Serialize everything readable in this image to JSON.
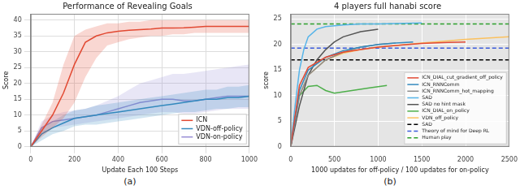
{
  "chart_data": [
    {
      "type": "line",
      "title": "Performance of Revealing Goals",
      "caption": "(a)",
      "x_label": "Update Each 100 Steps",
      "y_label": "Score",
      "xlim": [
        0,
        1000
      ],
      "xticks": [
        0,
        200,
        400,
        600,
        800,
        1000
      ],
      "ylim": [
        0,
        42
      ],
      "yticks": [
        0,
        5,
        10,
        15,
        20,
        25,
        30,
        35,
        40
      ],
      "grid": true,
      "legend": "lower right",
      "x": [
        0,
        50,
        100,
        150,
        200,
        250,
        300,
        350,
        400,
        450,
        500,
        550,
        600,
        650,
        700,
        750,
        800,
        850,
        900,
        950,
        1000
      ],
      "series": [
        {
          "name": "ICN",
          "color": "#e24a33",
          "values": [
            0,
            5,
            10,
            17,
            26,
            33,
            35,
            36,
            36.5,
            36.8,
            37,
            37.2,
            37.5,
            37.5,
            37.6,
            37.8,
            38,
            38,
            38,
            38,
            38
          ],
          "lower": [
            0,
            3,
            6,
            9,
            14,
            22,
            28,
            32,
            33,
            34,
            34.5,
            35,
            35,
            35.5,
            35.5,
            36,
            36,
            36,
            36,
            36,
            36
          ],
          "upper": [
            0,
            7,
            14,
            26,
            35,
            37,
            38,
            39,
            39,
            39.5,
            39.5,
            40,
            40,
            40,
            40,
            40,
            40,
            40,
            40,
            40,
            40
          ]
        },
        {
          "name": "VDN-off-policy",
          "color": "#348abd",
          "values": [
            0,
            4,
            6,
            7.5,
            9,
            9.5,
            10,
            10.5,
            11,
            11.5,
            12,
            12.5,
            13,
            13.5,
            14,
            14.5,
            15,
            15,
            15.5,
            15.5,
            16
          ],
          "lower": [
            0,
            2,
            4,
            5,
            6.5,
            7,
            7,
            7.5,
            8,
            8.5,
            9,
            9.5,
            10,
            10.5,
            11,
            11,
            11.5,
            12,
            12,
            12.5,
            12.5
          ],
          "upper": [
            0,
            6,
            8,
            10,
            11.5,
            12,
            13,
            13.5,
            14,
            14.5,
            15,
            15.5,
            16,
            16.5,
            17,
            17.5,
            18,
            18,
            19,
            19,
            19.5
          ]
        },
        {
          "name": "VDN-on-policy",
          "color": "#988ed5",
          "values": [
            0,
            6,
            8,
            8.5,
            9,
            9.5,
            10,
            11,
            12,
            13,
            14,
            14.5,
            15,
            15,
            14.5,
            14.5,
            15,
            15.5,
            16,
            16,
            16
          ],
          "lower": [
            0,
            4,
            6,
            6.5,
            7,
            7.5,
            8,
            8.5,
            9,
            9.5,
            10,
            10.5,
            11,
            11,
            10.5,
            10.5,
            11,
            11.5,
            12,
            12,
            12
          ],
          "upper": [
            0,
            8,
            10,
            11,
            11.5,
            12,
            13,
            14.5,
            16,
            18,
            20,
            21,
            22,
            23,
            23,
            23.5,
            24,
            24.5,
            25,
            25.5,
            26
          ]
        }
      ]
    },
    {
      "type": "line",
      "title": "4 players full hanabi score",
      "caption": "(b)",
      "x_label": "1000 updates for off-policy / 100 updates for on-policy",
      "y_label": "score",
      "xlim": [
        0,
        2500
      ],
      "xticks": [
        0,
        500,
        1000,
        1500,
        2000,
        2500
      ],
      "ylim": [
        0,
        26
      ],
      "yticks": [
        0,
        5,
        10,
        15,
        20,
        25
      ],
      "grid": true,
      "legend": "lower right",
      "series": [
        {
          "name": "ICN_DIAL_cut_gradient_off_policy",
          "color": "#e24a33",
          "line_style": "solid",
          "x": [
            0,
            100,
            200,
            400,
            600,
            800,
            1000,
            1200,
            1500,
            1800,
            2000
          ],
          "values": [
            0,
            12,
            15.5,
            17.5,
            18.5,
            19,
            19.5,
            19.8,
            20.2,
            20.4,
            20.5
          ]
        },
        {
          "name": "ICN_RNNComm",
          "color": "#348abd",
          "line_style": "solid",
          "x": [
            0,
            100,
            200,
            400,
            600,
            800,
            1000,
            1200,
            1400
          ],
          "values": [
            0,
            11,
            15,
            17.5,
            18.8,
            19.5,
            20,
            20.3,
            20.5
          ]
        },
        {
          "name": "ICN_RNNComm_hot_mapping",
          "color": "#8c8c8c",
          "line_style": "solid",
          "x": [
            0,
            100,
            200,
            400,
            600,
            800,
            1000,
            1200
          ],
          "values": [
            0,
            10,
            14,
            17,
            18.5,
            19.5,
            20,
            20.3
          ]
        },
        {
          "name": "SAD",
          "color": "#56b4e9",
          "line_style": "solid",
          "x": [
            0,
            50,
            100,
            150,
            200,
            300,
            400,
            600,
            800,
            1000,
            1200,
            1500
          ],
          "values": [
            0,
            8,
            15,
            19,
            21.5,
            23,
            23.5,
            23.8,
            24,
            24,
            24.1,
            24.2
          ]
        },
        {
          "name": "SAD no hint mask",
          "color": "#555555",
          "line_style": "solid",
          "x": [
            0,
            100,
            200,
            300,
            400,
            500,
            600,
            800,
            1000
          ],
          "values": [
            0,
            8,
            14,
            17,
            19,
            20.5,
            21.5,
            22.5,
            23
          ]
        },
        {
          "name": "ICN_DIAL_on_policy",
          "color": "#4daf4a",
          "line_style": "solid",
          "x": [
            0,
            50,
            100,
            200,
            300,
            400,
            500,
            700,
            900,
            1100
          ],
          "values": [
            0,
            6,
            10,
            11.8,
            12,
            11,
            10.5,
            11,
            11.5,
            12
          ]
        },
        {
          "name": "VDN_off_policy",
          "color": "#fbc15e",
          "line_style": "solid",
          "x": [
            0,
            100,
            200,
            400,
            600,
            800,
            1000,
            1500,
            2000,
            2500
          ],
          "values": [
            0,
            10,
            14,
            17,
            18.3,
            19,
            19.5,
            20.3,
            21,
            21.5
          ]
        },
        {
          "name": "SAD",
          "color": "#000000",
          "line_style": "dashed",
          "x": [
            0,
            2500
          ],
          "values": [
            17,
            17
          ]
        },
        {
          "name": "Theory of mind for Deep RL",
          "color": "#3b5bdb",
          "line_style": "dashed",
          "x": [
            0,
            2500
          ],
          "values": [
            19.3,
            19.3
          ]
        },
        {
          "name": "Human play",
          "color": "#2ca02c",
          "line_style": "dashed",
          "x": [
            0,
            2500
          ],
          "values": [
            24,
            24
          ]
        }
      ]
    }
  ]
}
